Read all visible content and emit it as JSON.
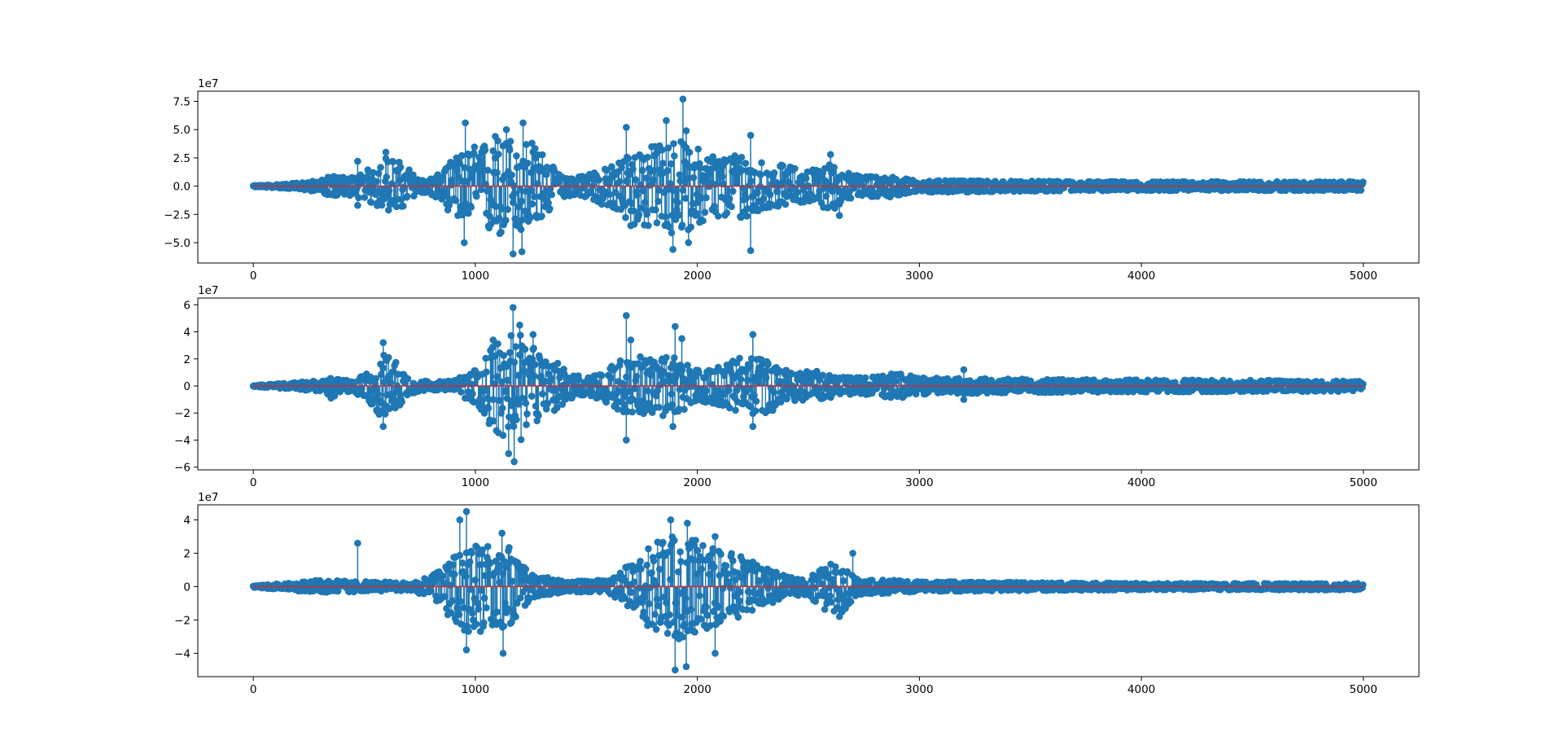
{
  "figure": {
    "background": "#ffffff",
    "stem_color": "#1f77b4",
    "baseline_color": "#d62728",
    "spine_color": "#000000"
  },
  "chart_data": [
    {
      "type": "stem",
      "title": "",
      "xlabel": "",
      "ylabel": "",
      "offset_label": "1e7",
      "xlim": [
        -250,
        5250
      ],
      "ylim": [
        -6.8,
        8.4
      ],
      "x_range": [
        0,
        4999
      ],
      "xticks": [
        0,
        1000,
        2000,
        3000,
        4000,
        5000
      ],
      "xtick_labels": [
        "0",
        "1000",
        "2000",
        "3000",
        "4000",
        "5000"
      ],
      "yticks": [
        -5.0,
        -2.5,
        0.0,
        2.5,
        5.0,
        7.5
      ],
      "ytick_labels": [
        "−5.0",
        "−2.5",
        "0.0",
        "2.5",
        "5.0",
        "7.5"
      ],
      "grid": false,
      "baseline": 0,
      "envelope": [
        {
          "x": 0,
          "upper": 0.05,
          "lower": -0.05
        },
        {
          "x": 150,
          "upper": 0.2,
          "lower": -0.2
        },
        {
          "x": 300,
          "upper": 0.5,
          "lower": -0.5
        },
        {
          "x": 350,
          "upper": 0.9,
          "lower": -0.9
        },
        {
          "x": 450,
          "upper": 0.8,
          "lower": -0.8
        },
        {
          "x": 520,
          "upper": 1.5,
          "lower": -1.5
        },
        {
          "x": 600,
          "upper": 2.6,
          "lower": -2.2
        },
        {
          "x": 680,
          "upper": 2.0,
          "lower": -2.0
        },
        {
          "x": 750,
          "upper": 0.5,
          "lower": -0.5
        },
        {
          "x": 820,
          "upper": 0.8,
          "lower": -1.0
        },
        {
          "x": 900,
          "upper": 2.4,
          "lower": -2.6
        },
        {
          "x": 1000,
          "upper": 3.6,
          "lower": -3.6
        },
        {
          "x": 1100,
          "upper": 4.2,
          "lower": -4.5
        },
        {
          "x": 1200,
          "upper": 4.4,
          "lower": -4.2
        },
        {
          "x": 1300,
          "upper": 3.0,
          "lower": -3.2
        },
        {
          "x": 1380,
          "upper": 1.0,
          "lower": -1.0
        },
        {
          "x": 1450,
          "upper": 0.8,
          "lower": -0.8
        },
        {
          "x": 1500,
          "upper": 1.2,
          "lower": -1.0
        },
        {
          "x": 1600,
          "upper": 1.6,
          "lower": -2.0
        },
        {
          "x": 1700,
          "upper": 3.0,
          "lower": -3.4
        },
        {
          "x": 1800,
          "upper": 3.6,
          "lower": -3.8
        },
        {
          "x": 1900,
          "upper": 4.2,
          "lower": -4.4
        },
        {
          "x": 2000,
          "upper": 3.4,
          "lower": -3.5
        },
        {
          "x": 2100,
          "upper": 2.6,
          "lower": -2.8
        },
        {
          "x": 2200,
          "upper": 3.0,
          "lower": -3.0
        },
        {
          "x": 2300,
          "upper": 2.2,
          "lower": -2.2
        },
        {
          "x": 2400,
          "upper": 1.8,
          "lower": -1.6
        },
        {
          "x": 2500,
          "upper": 1.4,
          "lower": -1.4
        },
        {
          "x": 2600,
          "upper": 2.0,
          "lower": -2.2
        },
        {
          "x": 2700,
          "upper": 1.0,
          "lower": -1.0
        },
        {
          "x": 2850,
          "upper": 0.9,
          "lower": -1.0
        },
        {
          "x": 3000,
          "upper": 0.5,
          "lower": -0.6
        },
        {
          "x": 3500,
          "upper": 0.45,
          "lower": -0.45
        },
        {
          "x": 4000,
          "upper": 0.4,
          "lower": -0.4
        },
        {
          "x": 4999,
          "upper": 0.4,
          "lower": -0.4
        }
      ],
      "peaks": [
        {
          "x": 470,
          "y": 2.2
        },
        {
          "x": 470,
          "y": -1.7
        },
        {
          "x": 597,
          "y": 3.0
        },
        {
          "x": 955,
          "y": 5.6
        },
        {
          "x": 950,
          "y": -5.0
        },
        {
          "x": 1090,
          "y": 4.4
        },
        {
          "x": 1140,
          "y": 5.0
        },
        {
          "x": 1170,
          "y": -6.0
        },
        {
          "x": 1215,
          "y": 5.6
        },
        {
          "x": 1210,
          "y": -5.8
        },
        {
          "x": 1255,
          "y": 3.8
        },
        {
          "x": 1680,
          "y": 5.2
        },
        {
          "x": 1700,
          "y": -3.5
        },
        {
          "x": 1860,
          "y": 5.8
        },
        {
          "x": 1890,
          "y": -5.6
        },
        {
          "x": 1935,
          "y": 7.7
        },
        {
          "x": 1950,
          "y": 4.9
        },
        {
          "x": 1960,
          "y": -5.0
        },
        {
          "x": 2010,
          "y": -3.2
        },
        {
          "x": 2240,
          "y": 4.5
        },
        {
          "x": 2240,
          "y": -5.7
        },
        {
          "x": 2600,
          "y": 2.8
        },
        {
          "x": 2640,
          "y": -2.6
        }
      ]
    },
    {
      "type": "stem",
      "title": "",
      "xlabel": "",
      "ylabel": "",
      "offset_label": "1e7",
      "xlim": [
        -250,
        5250
      ],
      "ylim": [
        -6.2,
        6.5
      ],
      "x_range": [
        0,
        4999
      ],
      "xticks": [
        0,
        1000,
        2000,
        3000,
        4000,
        5000
      ],
      "xtick_labels": [
        "0",
        "1000",
        "2000",
        "3000",
        "4000",
        "5000"
      ],
      "yticks": [
        -6,
        -4,
        -2,
        0,
        2,
        4,
        6
      ],
      "ytick_labels": [
        "−6",
        "−4",
        "−2",
        "0",
        "2",
        "4",
        "6"
      ],
      "grid": false,
      "baseline": 0,
      "envelope": [
        {
          "x": 0,
          "upper": 0.05,
          "lower": -0.05
        },
        {
          "x": 150,
          "upper": 0.2,
          "lower": -0.2
        },
        {
          "x": 300,
          "upper": 0.4,
          "lower": -0.4
        },
        {
          "x": 360,
          "upper": 0.6,
          "lower": -0.8
        },
        {
          "x": 450,
          "upper": 0.4,
          "lower": -0.4
        },
        {
          "x": 520,
          "upper": 1.0,
          "lower": -1.2
        },
        {
          "x": 580,
          "upper": 2.4,
          "lower": -2.4
        },
        {
          "x": 640,
          "upper": 2.0,
          "lower": -2.0
        },
        {
          "x": 700,
          "upper": 0.6,
          "lower": -0.6
        },
        {
          "x": 800,
          "upper": 0.3,
          "lower": -0.3
        },
        {
          "x": 900,
          "upper": 0.4,
          "lower": -0.4
        },
        {
          "x": 1000,
          "upper": 1.2,
          "lower": -1.6
        },
        {
          "x": 1100,
          "upper": 3.6,
          "lower": -3.6
        },
        {
          "x": 1200,
          "upper": 3.8,
          "lower": -4.2
        },
        {
          "x": 1300,
          "upper": 2.4,
          "lower": -2.4
        },
        {
          "x": 1400,
          "upper": 1.4,
          "lower": -1.4
        },
        {
          "x": 1500,
          "upper": 0.6,
          "lower": -0.6
        },
        {
          "x": 1600,
          "upper": 1.4,
          "lower": -1.4
        },
        {
          "x": 1700,
          "upper": 2.4,
          "lower": -2.2
        },
        {
          "x": 1800,
          "upper": 2.0,
          "lower": -2.2
        },
        {
          "x": 1900,
          "upper": 2.2,
          "lower": -2.4
        },
        {
          "x": 2000,
          "upper": 1.2,
          "lower": -1.2
        },
        {
          "x": 2100,
          "upper": 1.4,
          "lower": -1.4
        },
        {
          "x": 2200,
          "upper": 2.2,
          "lower": -2.0
        },
        {
          "x": 2300,
          "upper": 2.0,
          "lower": -2.2
        },
        {
          "x": 2400,
          "upper": 1.2,
          "lower": -1.2
        },
        {
          "x": 2500,
          "upper": 1.2,
          "lower": -1.0
        },
        {
          "x": 2600,
          "upper": 0.9,
          "lower": -0.9
        },
        {
          "x": 2700,
          "upper": 0.6,
          "lower": -0.6
        },
        {
          "x": 2800,
          "upper": 0.7,
          "lower": -0.7
        },
        {
          "x": 2900,
          "upper": 1.0,
          "lower": -1.0
        },
        {
          "x": 3000,
          "upper": 0.6,
          "lower": -0.6
        },
        {
          "x": 3500,
          "upper": 0.5,
          "lower": -0.5
        },
        {
          "x": 4000,
          "upper": 0.45,
          "lower": -0.45
        },
        {
          "x": 4999,
          "upper": 0.4,
          "lower": -0.4
        }
      ],
      "peaks": [
        {
          "x": 350,
          "y": -0.9
        },
        {
          "x": 585,
          "y": 3.2
        },
        {
          "x": 585,
          "y": -3.0
        },
        {
          "x": 1080,
          "y": 3.4
        },
        {
          "x": 1150,
          "y": -5.0
        },
        {
          "x": 1170,
          "y": 5.8
        },
        {
          "x": 1175,
          "y": -5.6
        },
        {
          "x": 1200,
          "y": 4.5
        },
        {
          "x": 1260,
          "y": 3.8
        },
        {
          "x": 1680,
          "y": 5.2
        },
        {
          "x": 1680,
          "y": -4.0
        },
        {
          "x": 1700,
          "y": 3.4
        },
        {
          "x": 1900,
          "y": 4.4
        },
        {
          "x": 1930,
          "y": 3.5
        },
        {
          "x": 1890,
          "y": -3.0
        },
        {
          "x": 2250,
          "y": 3.8
        },
        {
          "x": 2250,
          "y": -3.0
        },
        {
          "x": 3200,
          "y": 1.2
        },
        {
          "x": 3200,
          "y": -1.0
        }
      ]
    },
    {
      "type": "stem",
      "title": "",
      "xlabel": "",
      "ylabel": "",
      "offset_label": "1e7",
      "xlim": [
        -250,
        5250
      ],
      "ylim": [
        -5.4,
        4.9
      ],
      "x_range": [
        0,
        4999
      ],
      "xticks": [
        0,
        1000,
        2000,
        3000,
        4000,
        5000
      ],
      "xtick_labels": [
        "0",
        "1000",
        "2000",
        "3000",
        "4000",
        "5000"
      ],
      "yticks": [
        -4,
        -2,
        0,
        2,
        4
      ],
      "ytick_labels": [
        "−4",
        "−2",
        "0",
        "2",
        "4"
      ],
      "grid": false,
      "baseline": 0,
      "envelope": [
        {
          "x": 0,
          "upper": 0.05,
          "lower": -0.05
        },
        {
          "x": 150,
          "upper": 0.2,
          "lower": -0.2
        },
        {
          "x": 300,
          "upper": 0.4,
          "lower": -0.4
        },
        {
          "x": 500,
          "upper": 0.3,
          "lower": -0.3
        },
        {
          "x": 700,
          "upper": 0.25,
          "lower": -0.25
        },
        {
          "x": 800,
          "upper": 0.6,
          "lower": -0.6
        },
        {
          "x": 870,
          "upper": 1.4,
          "lower": -1.6
        },
        {
          "x": 950,
          "upper": 2.8,
          "lower": -2.8
        },
        {
          "x": 1050,
          "upper": 2.6,
          "lower": -2.8
        },
        {
          "x": 1150,
          "upper": 2.4,
          "lower": -2.4
        },
        {
          "x": 1250,
          "upper": 0.8,
          "lower": -0.8
        },
        {
          "x": 1400,
          "upper": 0.3,
          "lower": -0.3
        },
        {
          "x": 1600,
          "upper": 0.4,
          "lower": -0.4
        },
        {
          "x": 1700,
          "upper": 1.4,
          "lower": -1.4
        },
        {
          "x": 1800,
          "upper": 2.6,
          "lower": -2.8
        },
        {
          "x": 1900,
          "upper": 3.2,
          "lower": -3.2
        },
        {
          "x": 2000,
          "upper": 2.8,
          "lower": -2.8
        },
        {
          "x": 2100,
          "upper": 2.2,
          "lower": -2.2
        },
        {
          "x": 2200,
          "upper": 1.8,
          "lower": -1.8
        },
        {
          "x": 2300,
          "upper": 1.2,
          "lower": -1.2
        },
        {
          "x": 2400,
          "upper": 0.6,
          "lower": -0.6
        },
        {
          "x": 2500,
          "upper": 0.5,
          "lower": -0.5
        },
        {
          "x": 2580,
          "upper": 1.4,
          "lower": -1.6
        },
        {
          "x": 2650,
          "upper": 1.4,
          "lower": -1.6
        },
        {
          "x": 2720,
          "upper": 0.5,
          "lower": -0.5
        },
        {
          "x": 3000,
          "upper": 0.3,
          "lower": -0.3
        },
        {
          "x": 4000,
          "upper": 0.2,
          "lower": -0.2
        },
        {
          "x": 4999,
          "upper": 0.2,
          "lower": -0.2
        }
      ],
      "peaks": [
        {
          "x": 470,
          "y": 2.6
        },
        {
          "x": 930,
          "y": 4.0
        },
        {
          "x": 960,
          "y": 4.5
        },
        {
          "x": 960,
          "y": -3.8
        },
        {
          "x": 1120,
          "y": 3.2
        },
        {
          "x": 1125,
          "y": -4.0
        },
        {
          "x": 1880,
          "y": 4.0
        },
        {
          "x": 1900,
          "y": -5.0
        },
        {
          "x": 1950,
          "y": -4.8
        },
        {
          "x": 1955,
          "y": 3.8
        },
        {
          "x": 2080,
          "y": 3.0
        },
        {
          "x": 2080,
          "y": -4.0
        },
        {
          "x": 2700,
          "y": 2.0
        },
        {
          "x": 2640,
          "y": -1.8
        }
      ]
    }
  ]
}
